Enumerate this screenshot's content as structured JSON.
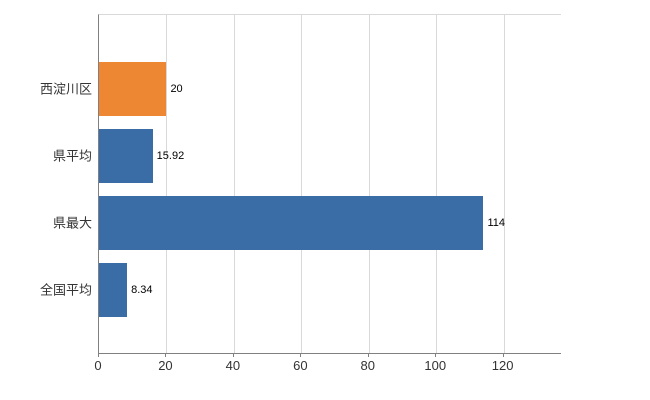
{
  "chart_data": {
    "type": "bar",
    "orientation": "horizontal",
    "title": "",
    "xlabel": "",
    "ylabel": "",
    "categories": [
      "西淀川区",
      "県平均",
      "県最大",
      "全国平均"
    ],
    "values": [
      20,
      15.92,
      114,
      8.34
    ],
    "value_labels": [
      "20",
      "15.92",
      "114",
      "8.34"
    ],
    "bar_colors": [
      "#ED8733",
      "#3A6CA6",
      "#3A6CA6",
      "#3A6CA6"
    ],
    "x_ticks": [
      0,
      20,
      40,
      60,
      80,
      100,
      120
    ],
    "x_tick_labels": [
      "0",
      "20",
      "40",
      "60",
      "80",
      "100",
      "120"
    ],
    "xlim": [
      0,
      137
    ],
    "grid": true,
    "legend": "none",
    "colors": {
      "axis": "#808080",
      "gridline": "#d9d9d9",
      "tick_text": "#333333",
      "value_text": "#000000",
      "background": "#ffffff"
    }
  }
}
